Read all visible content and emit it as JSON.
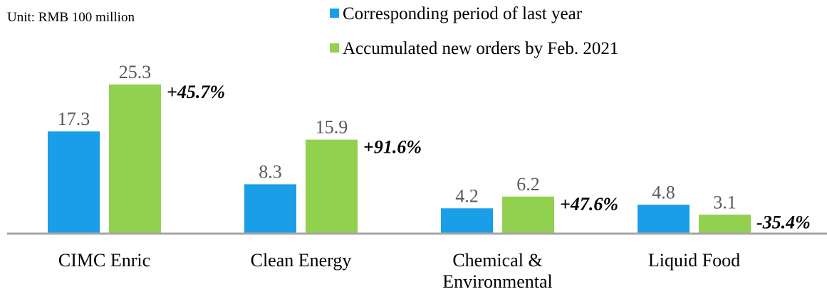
{
  "chart_data": {
    "type": "bar",
    "unit_note": "Unit: RMB 100 million",
    "categories": [
      "CIMC Enric",
      "Clean Energy",
      "Chemical & Environmental",
      "Liquid Food"
    ],
    "series": [
      {
        "name": "Corresponding period of last year",
        "color": "#1a9ee8",
        "values": [
          17.3,
          8.3,
          4.2,
          4.8
        ]
      },
      {
        "name": "Accumulated new orders by Feb. 2021",
        "color": "#92d050",
        "values": [
          25.3,
          15.9,
          6.2,
          3.1
        ]
      }
    ],
    "annotations": [
      "+45.7%",
      "+91.6%",
      "+47.6%",
      "-35.4%"
    ]
  }
}
